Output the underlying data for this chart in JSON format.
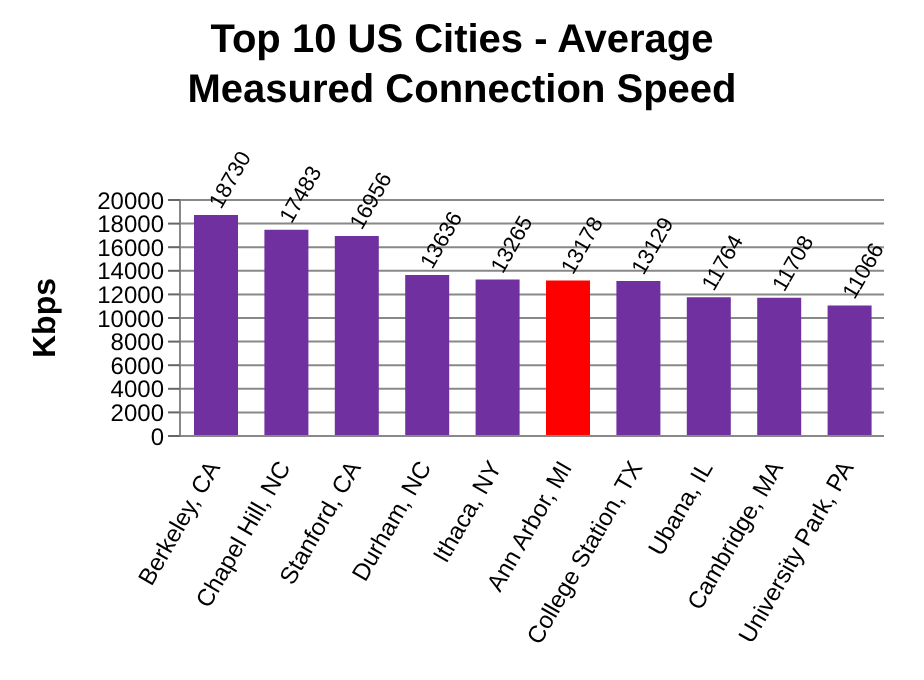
{
  "chart_data": {
    "type": "bar",
    "title": "Top 10 US Cities - Average Measured Connection Speed",
    "ylabel": "Kbps",
    "categories": [
      "Berkeley, CA",
      "Chapel Hill, NC",
      "Stanford, CA",
      "Durham, NC",
      "Ithaca, NY",
      "Ann Arbor, MI",
      "College Station, TX",
      "Ubana, IL",
      "Cambridge, MA",
      "University Park, PA"
    ],
    "values": [
      18730,
      17483,
      16956,
      13636,
      13265,
      13178,
      13129,
      11764,
      11708,
      11066
    ],
    "colors": [
      "#7030a0",
      "#7030a0",
      "#7030a0",
      "#7030a0",
      "#7030a0",
      "#ff0000",
      "#7030a0",
      "#7030a0",
      "#7030a0",
      "#7030a0"
    ],
    "ylim": [
      0,
      20000
    ],
    "yticks": [
      0,
      2000,
      4000,
      6000,
      8000,
      10000,
      12000,
      14000,
      16000,
      18000,
      20000
    ],
    "grid": "y",
    "data_labels": true
  }
}
